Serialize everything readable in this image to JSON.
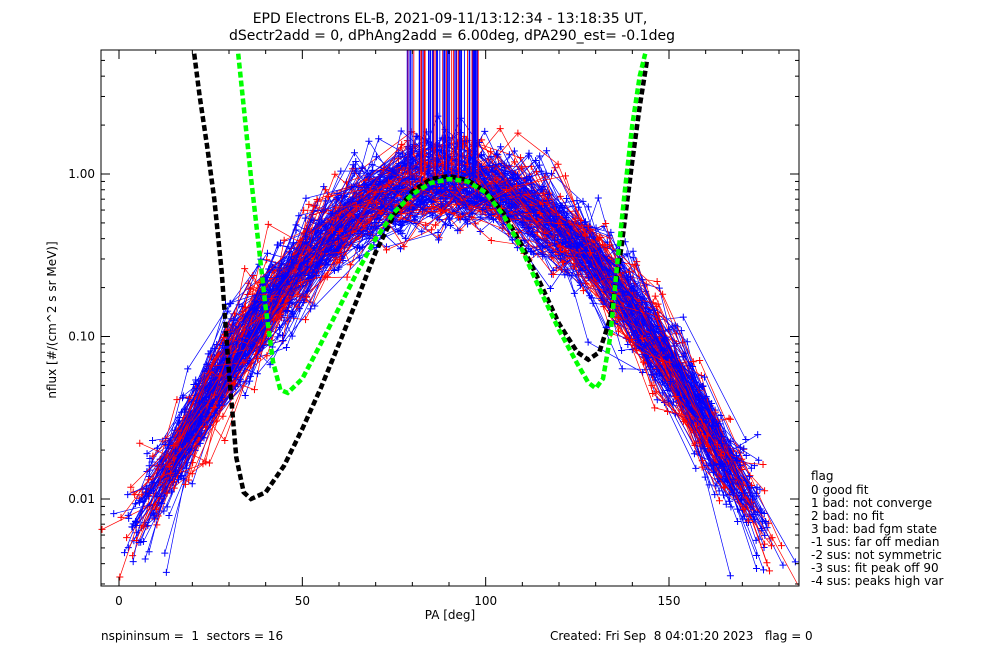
{
  "title_line1": "EPD Electrons EL-B, 2021-09-11/13:12:34 - 13:18:35 UT,",
  "title_line2": "dSectr2add = 0, dPhAng2add = 6.00deg, dPA290_est=  -0.1deg",
  "footer_left": "nspininsum =  1  sectors = 16",
  "footer_right": "Created: Fri Sep  8 04:01:20 2023   flag = 0",
  "legend": {
    "title": "flag",
    "items": [
      " 0 good fit",
      " 1 bad: not converge",
      " 2 bad: no fit",
      " 3 bad: bad fgm state",
      "-1 sus: far off median",
      "-2 sus: not symmetric",
      "-3 sus: fit peak off 90",
      "-4 sus: peaks high var"
    ]
  },
  "colors": {
    "red": "#ff0000",
    "blue": "#0000ff",
    "black_fit": "#000000",
    "green_fit": "#00ff00"
  },
  "chart_data": {
    "type": "line",
    "title": "EPD Electrons EL-B, 2021-09-11/13:12:34 - 13:18:35 UT,",
    "xlabel": "PA [deg]",
    "ylabel": "nflux [#/(cm^2 s sr MeV)]",
    "xlim": [
      -5,
      185
    ],
    "ylim": [
      0.003,
      5.5
    ],
    "yscale": "log",
    "x_ticks": [
      0,
      50,
      100,
      150
    ],
    "y_ticks": [
      0.01,
      0.1,
      1.0
    ],
    "y_tick_labels": [
      "0.01",
      "0.10",
      "1.00"
    ],
    "grid": false,
    "legend_position": "right",
    "series": [
      {
        "color": "black",
        "style": "dashed",
        "x": [
          20.5,
          22,
          24,
          26,
          28,
          30,
          32,
          34,
          36,
          40,
          45,
          50,
          55,
          60,
          65,
          70,
          75,
          80,
          85,
          90,
          95,
          100,
          105,
          110,
          115,
          120,
          125,
          128,
          131,
          134,
          137,
          140,
          142,
          144
        ],
        "y": [
          5.5,
          3.0,
          1.5,
          0.7,
          0.25,
          0.06,
          0.018,
          0.011,
          0.01,
          0.011,
          0.016,
          0.027,
          0.048,
          0.09,
          0.17,
          0.33,
          0.56,
          0.78,
          0.93,
          0.97,
          0.92,
          0.78,
          0.57,
          0.36,
          0.21,
          0.12,
          0.08,
          0.072,
          0.08,
          0.13,
          0.35,
          1.2,
          2.6,
          5.0
        ]
      },
      {
        "color": "green",
        "style": "dashed",
        "x": [
          32.5,
          34,
          36,
          38,
          40,
          42,
          44,
          46,
          50,
          55,
          60,
          65,
          70,
          75,
          80,
          85,
          90,
          95,
          100,
          105,
          110,
          115,
          120,
          125,
          128,
          130,
          132,
          134,
          136,
          138,
          140,
          142,
          143.5
        ],
        "y": [
          5.5,
          2.6,
          0.95,
          0.38,
          0.15,
          0.07,
          0.047,
          0.045,
          0.055,
          0.09,
          0.15,
          0.25,
          0.4,
          0.58,
          0.75,
          0.88,
          0.93,
          0.9,
          0.77,
          0.55,
          0.34,
          0.19,
          0.11,
          0.068,
          0.052,
          0.048,
          0.055,
          0.1,
          0.3,
          0.8,
          2.0,
          4.0,
          5.5
        ]
      }
    ]
  }
}
